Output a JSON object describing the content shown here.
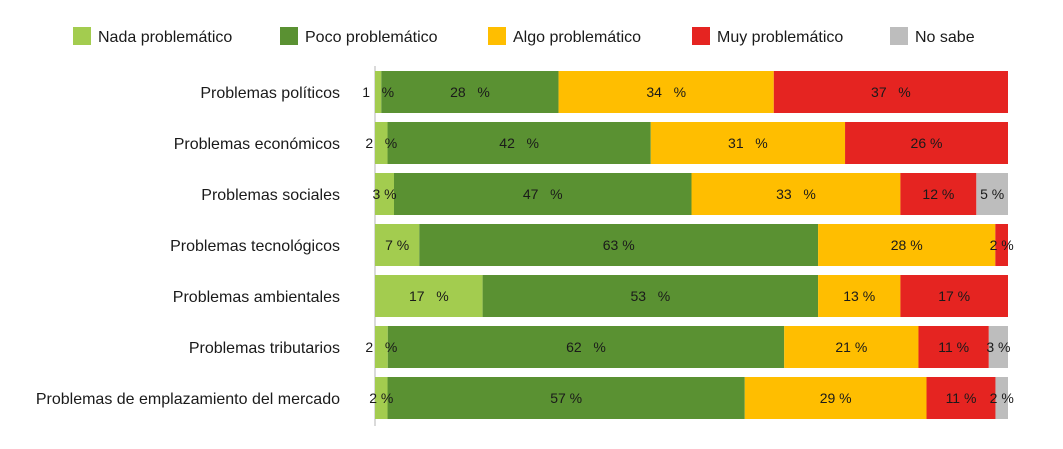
{
  "chart_data": {
    "type": "bar",
    "orientation": "horizontal",
    "stacked": true,
    "title": "",
    "xlabel": "",
    "ylabel": "",
    "xlim": [
      0,
      100
    ],
    "grid": false,
    "legend_position": "top",
    "categories": [
      "Problemas políticos",
      "Problemas económicos",
      "Problemas sociales",
      "Problemas tecnológicos",
      "Problemas ambientales",
      "Problemas tributarios",
      "Problemas de emplazamiento del mercado"
    ],
    "series": [
      {
        "name": "Nada problemático",
        "color": "#a3cc4f",
        "values": [
          1,
          2,
          3,
          7,
          17,
          2,
          2
        ],
        "labels": [
          "1   %",
          "2   %",
          "3 %",
          "7 %",
          "17   %",
          "2   %",
          "2 %"
        ]
      },
      {
        "name": "Poco problemático",
        "color": "#5a9132",
        "values": [
          28,
          42,
          47,
          63,
          53,
          62,
          57
        ],
        "labels": [
          "28   %",
          "42   %",
          "47   %",
          "63 %",
          "53   %",
          "62   %",
          "57 %"
        ]
      },
      {
        "name": "Algo problemático",
        "color": "#ffbe00",
        "values": [
          34,
          31,
          33,
          28,
          13,
          21,
          29
        ],
        "labels": [
          "34   %",
          "31   %",
          "33   %",
          "28 %",
          "13 %",
          "21 %",
          "29 %"
        ]
      },
      {
        "name": "Muy problemático",
        "color": "#e52421",
        "values": [
          37,
          26,
          12,
          2,
          17,
          11,
          11
        ],
        "labels": [
          "37   %",
          "26 %",
          "12 %",
          "2 %",
          "17 %",
          "11 %",
          "11 %"
        ]
      },
      {
        "name": "No sabe",
        "color": "#bdbdbd",
        "values": [
          0,
          0,
          5,
          0,
          0,
          3,
          2
        ],
        "labels": [
          "",
          "",
          "5 %",
          "",
          "",
          "3 %",
          "2 %"
        ]
      }
    ]
  }
}
